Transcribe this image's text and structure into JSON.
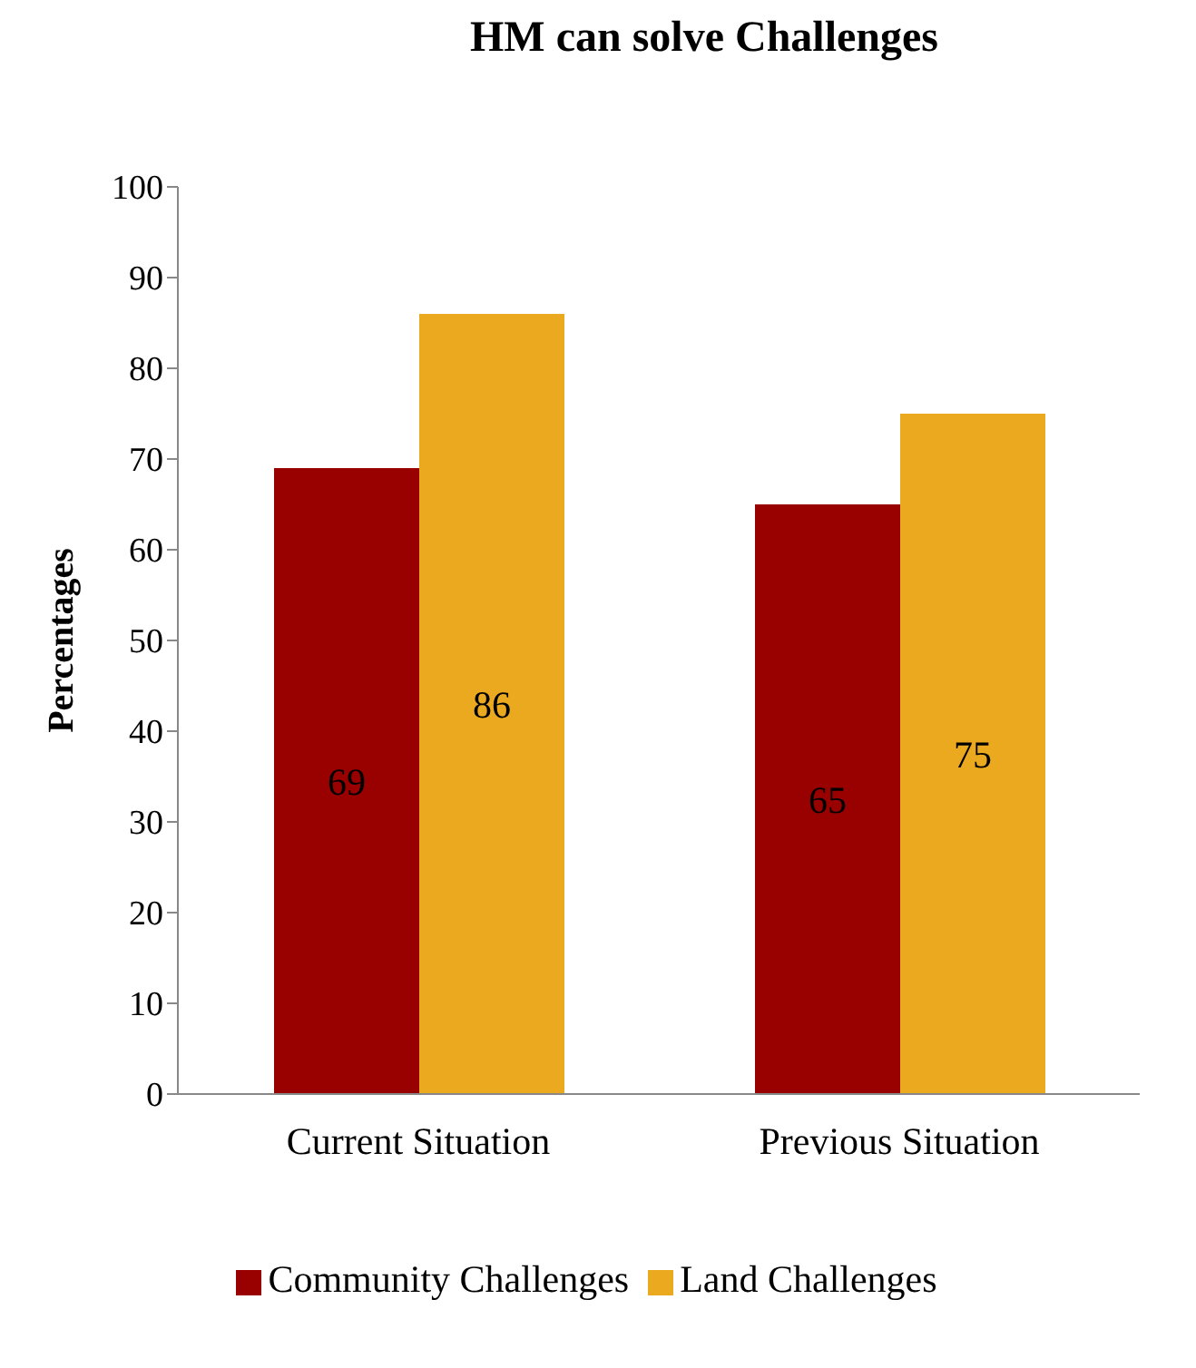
{
  "chart_data": {
    "type": "bar",
    "title": "HM can solve Challenges",
    "ylabel": "Percentages",
    "categories": [
      "Current Situation",
      "Previous Situation"
    ],
    "series": [
      {
        "name": "Community Challenges",
        "color": "#990000",
        "values": [
          69,
          65
        ]
      },
      {
        "name": "Land Challenges",
        "color": "#eba91f",
        "values": [
          86,
          75
        ]
      }
    ],
    "ylim": [
      0,
      100
    ],
    "yticks": [
      0,
      10,
      20,
      30,
      40,
      50,
      60,
      70,
      80,
      90,
      100
    ],
    "data_labels": true,
    "legend": "bottom",
    "grid": false
  }
}
